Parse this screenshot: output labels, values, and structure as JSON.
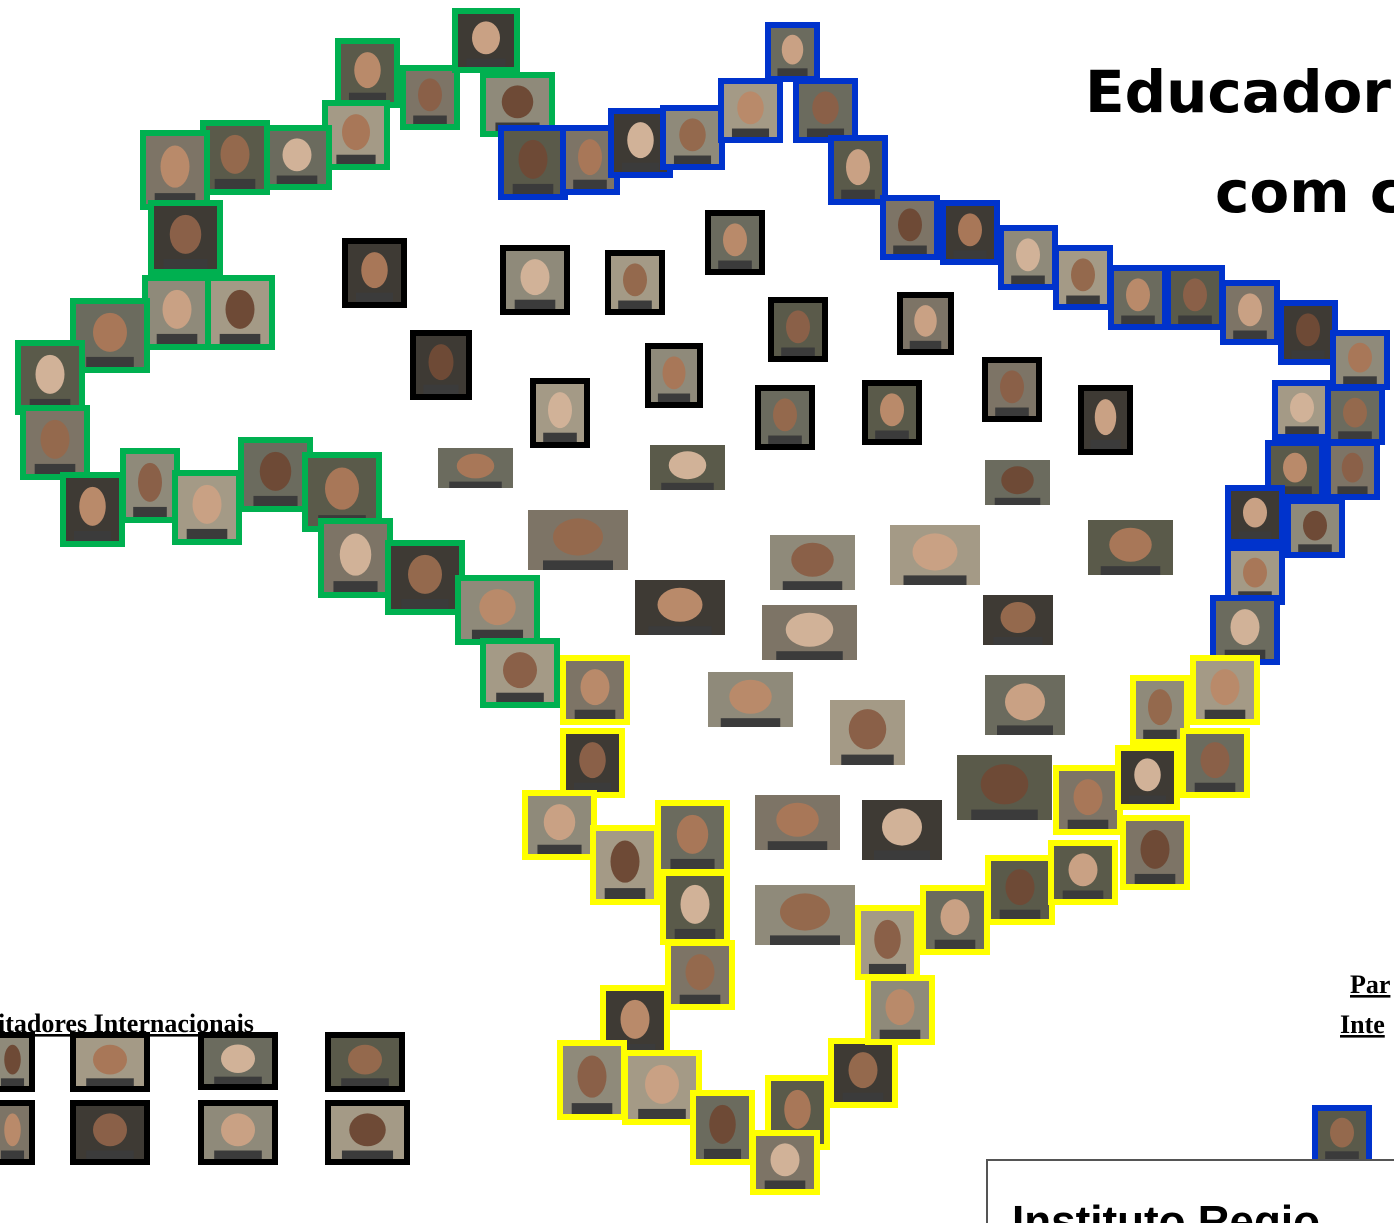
{
  "title_lines": [
    "Educador",
    "com c"
  ],
  "left_caption": "itadores Internacionais",
  "right_caption_lines": [
    "Par",
    "Inte"
  ],
  "footer": "Instituto Regio"
}
